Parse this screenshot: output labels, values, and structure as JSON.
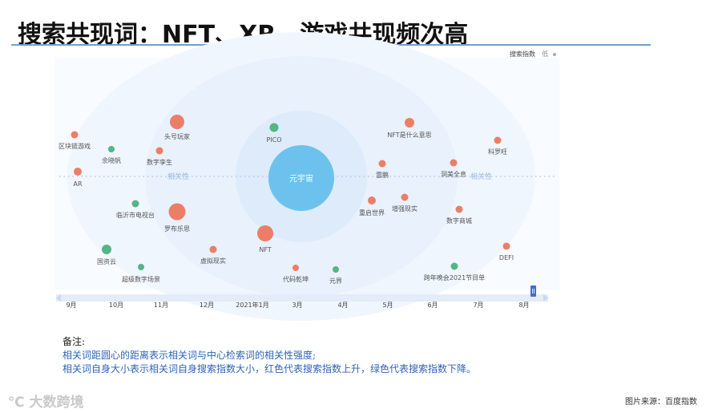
{
  "title": "搜索共现词：NFT、XR、游戏共现频次高",
  "legend": {
    "label": "搜索指数",
    "low": "低"
  },
  "center_word": "元宇宙",
  "relevance_label": "相关性",
  "timeline": {
    "ticks": [
      "9月",
      "10月",
      "11月",
      "12月",
      "2021年1月",
      "3月",
      "4月",
      "5月",
      "6月",
      "7月",
      "8月"
    ]
  },
  "colors": {
    "up": "#ec7e68",
    "down": "#54b585",
    "center": "#6cc2ec",
    "accent": "#3e6fd0"
  },
  "words": [
    {
      "text": "区块链游戏",
      "trend": "up"
    },
    {
      "text": "AR",
      "trend": "up"
    },
    {
      "text": "余晓帆",
      "trend": "down"
    },
    {
      "text": "头号玩家",
      "trend": "up"
    },
    {
      "text": "数字孪生",
      "trend": "up"
    },
    {
      "text": "临沂市电视台",
      "trend": "down"
    },
    {
      "text": "罗布乐思",
      "trend": "up"
    },
    {
      "text": "国资云",
      "trend": "down"
    },
    {
      "text": "超级数字场景",
      "trend": "down"
    },
    {
      "text": "虚拟现实",
      "trend": "up"
    },
    {
      "text": "PICO",
      "trend": "down"
    },
    {
      "text": "NFT",
      "trend": "up"
    },
    {
      "text": "代码乾坤",
      "trend": "up"
    },
    {
      "text": "元界",
      "trend": "down"
    },
    {
      "text": "NFT是什么意思",
      "trend": "up"
    },
    {
      "text": "雷鹏",
      "trend": "up"
    },
    {
      "text": "重启世界",
      "trend": "up"
    },
    {
      "text": "增强现实",
      "trend": "up"
    },
    {
      "text": "洞美全息",
      "trend": "up"
    },
    {
      "text": "科罗旺",
      "trend": "up"
    },
    {
      "text": "数字商城",
      "trend": "up"
    },
    {
      "text": "跨年晚会2021节目单",
      "trend": "down"
    },
    {
      "text": "DEFI",
      "trend": "up"
    }
  ],
  "notes": {
    "heading": "备注:",
    "line1": "相关词距圆心的距离表示相关词与中心检索词的相关性强度;",
    "line2": "相关词自身大小表示相关词自身搜索指数大小，红色代表搜索指数上升，绿色代表搜索指数下降。"
  },
  "watermark": "大数跨境",
  "source": "图片来源：百度指数"
}
